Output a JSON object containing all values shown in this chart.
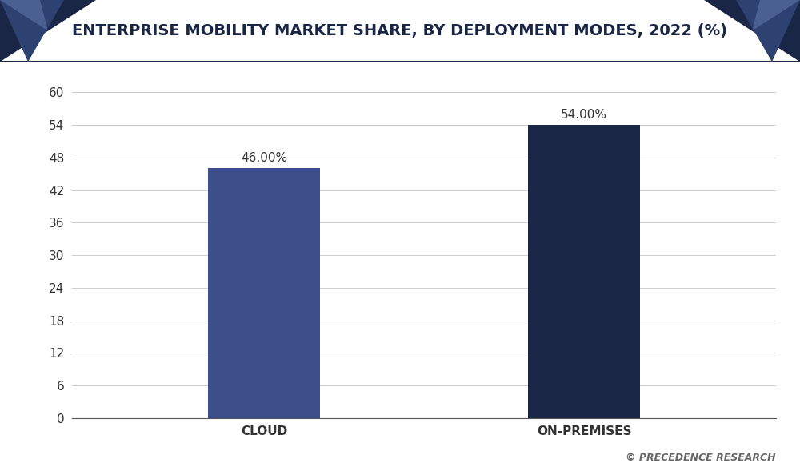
{
  "title": "ENTERPRISE MOBILITY MARKET SHARE, BY DEPLOYMENT MODES, 2022 (%)",
  "categories": [
    "CLOUD",
    "ON-PREMISES"
  ],
  "values": [
    46.0,
    54.0
  ],
  "labels": [
    "46.00%",
    "54.00%"
  ],
  "bar_color_cloud": "#3d4f8a",
  "bar_color_onprem": "#1a2645",
  "background_color": "#ffffff",
  "plot_bg_color": "#ffffff",
  "title_bg_color": "#ffffff",
  "title_text_color": "#1a2645",
  "grid_color": "#cccccc",
  "axis_color": "#555555",
  "tick_label_color": "#333333",
  "bar_label_color": "#333333",
  "watermark_text": "© PRECEDENCE RESEARCH",
  "watermark_color": "#666666",
  "tri_dark": "#1a2645",
  "tri_mid": "#2e4272",
  "tri_light": "#4a6090",
  "ylim": [
    0,
    63
  ],
  "yticks": [
    0,
    6,
    12,
    18,
    24,
    30,
    36,
    42,
    48,
    54,
    60
  ],
  "bar_width": 0.35,
  "label_fontsize": 11,
  "tick_fontsize": 11,
  "title_fontsize": 14,
  "border_color": "#1a2645"
}
